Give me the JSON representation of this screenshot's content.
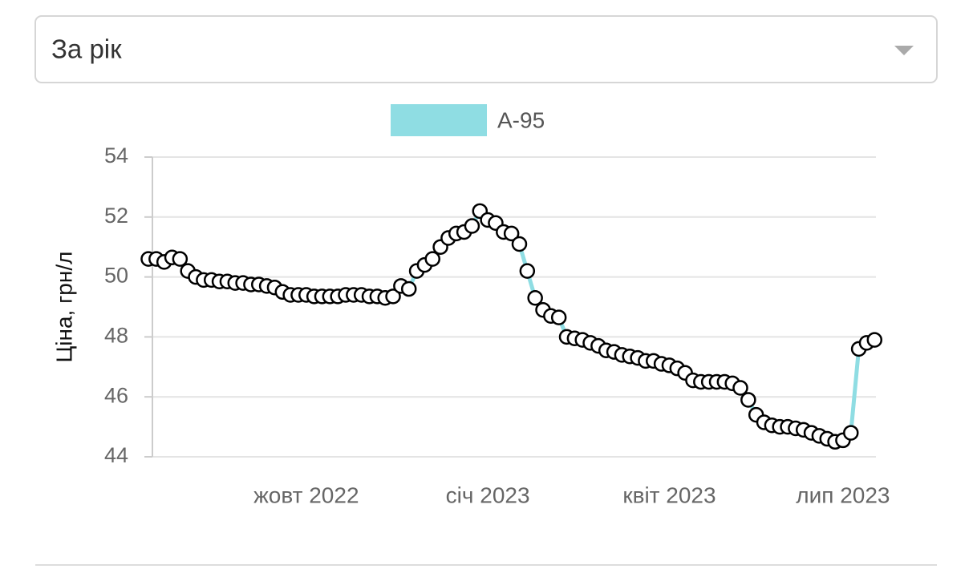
{
  "dropdown": {
    "selected": "За рік"
  },
  "chart_data": {
    "type": "line",
    "y_label": "Ціна, грн/л",
    "categories": [
      "",
      "",
      "",
      "",
      "",
      "",
      "",
      "",
      "",
      "",
      "",
      "",
      "",
      "",
      "",
      "",
      "",
      "",
      "",
      "",
      "жовт 2022",
      "",
      "",
      "",
      "",
      "",
      "",
      "",
      "",
      "",
      "",
      "",
      "",
      "",
      "",
      "",
      "",
      "",
      "",
      "",
      "",
      "",
      "",
      "січ 2023",
      "",
      "",
      "",
      "",
      "",
      "",
      "",
      "",
      "",
      "",
      "",
      "",
      "",
      "",
      "",
      "",
      "",
      "",
      "",
      "",
      "",
      "",
      "квіт 2023",
      "",
      "",
      "",
      "",
      "",
      "",
      "",
      "",
      "",
      "",
      "",
      "",
      "",
      "",
      "",
      "",
      "",
      "",
      "",
      "",
      "",
      "лип 2023",
      "",
      "",
      "",
      ""
    ],
    "series": [
      {
        "name": "A-95",
        "color": "#8fdde3",
        "values": [
          50.6,
          50.6,
          50.5,
          50.65,
          50.6,
          50.2,
          50.0,
          49.9,
          49.9,
          49.85,
          49.85,
          49.8,
          49.8,
          49.75,
          49.75,
          49.7,
          49.65,
          49.5,
          49.4,
          49.4,
          49.4,
          49.35,
          49.35,
          49.35,
          49.35,
          49.4,
          49.4,
          49.4,
          49.35,
          49.35,
          49.3,
          49.35,
          49.7,
          49.6,
          50.2,
          50.4,
          50.6,
          51.0,
          51.3,
          51.45,
          51.5,
          51.7,
          52.2,
          51.9,
          51.8,
          51.5,
          51.45,
          51.1,
          50.2,
          49.3,
          48.9,
          48.7,
          48.65,
          48.0,
          47.95,
          47.9,
          47.8,
          47.7,
          47.55,
          47.5,
          47.4,
          47.35,
          47.3,
          47.2,
          47.2,
          47.1,
          47.05,
          46.95,
          46.8,
          46.55,
          46.5,
          46.5,
          46.5,
          46.5,
          46.45,
          46.3,
          45.9,
          45.4,
          45.15,
          45.05,
          45.0,
          45.0,
          44.95,
          44.9,
          44.8,
          44.7,
          44.6,
          44.5,
          44.55,
          44.8,
          47.6,
          47.8,
          47.9
        ]
      }
    ],
    "ylim": [
      44,
      54
    ],
    "yticks": [
      44,
      46,
      48,
      50,
      52,
      54
    ],
    "grid": true
  }
}
